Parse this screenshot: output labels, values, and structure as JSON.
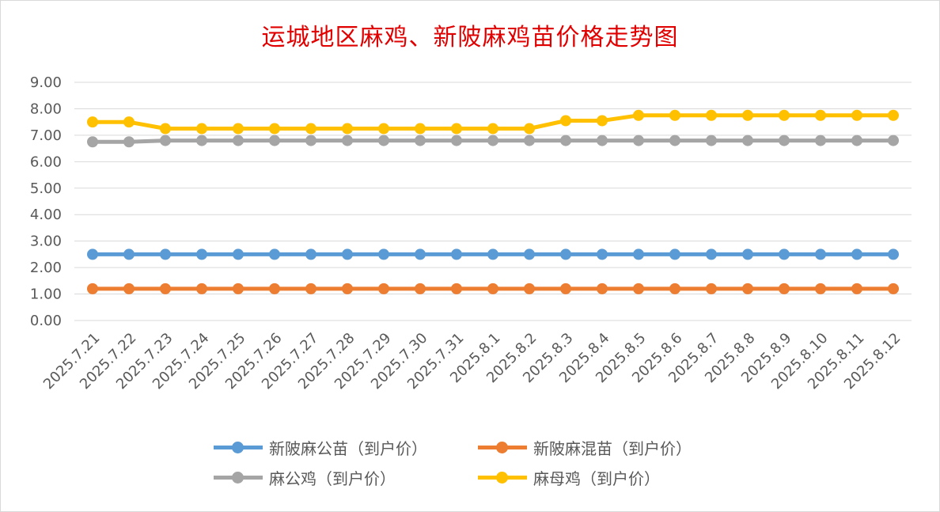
{
  "chart_data": {
    "type": "line",
    "title": "运城地区麻鸡、新陂麻鸡苗价格走势图",
    "xlabel": "",
    "ylabel": "",
    "ylim": [
      0,
      9
    ],
    "ytick_step": 1,
    "y_tick_labels": [
      "0.00",
      "1.00",
      "2.00",
      "3.00",
      "4.00",
      "5.00",
      "6.00",
      "7.00",
      "8.00",
      "9.00"
    ],
    "grid": true,
    "legend_position": "bottom",
    "categories": [
      "2025.7.21",
      "2025.7.22",
      "2025.7.23",
      "2025.7.24",
      "2025.7.25",
      "2025.7.26",
      "2025.7.27",
      "2025.7.28",
      "2025.7.29",
      "2025.7.30",
      "2025.7.31",
      "2025.8.1",
      "2025.8.2",
      "2025.8.3",
      "2025.8.4",
      "2025.8.5",
      "2025.8.6",
      "2025.8.7",
      "2025.8.8",
      "2025.8.9",
      "2025.8.10",
      "2025.8.11",
      "2025.8.12"
    ],
    "series": [
      {
        "name": "新陂麻公苗（到户价）",
        "color": "#5b9bd5",
        "values": [
          2.5,
          2.5,
          2.5,
          2.5,
          2.5,
          2.5,
          2.5,
          2.5,
          2.5,
          2.5,
          2.5,
          2.5,
          2.5,
          2.5,
          2.5,
          2.5,
          2.5,
          2.5,
          2.5,
          2.5,
          2.5,
          2.5,
          2.5
        ]
      },
      {
        "name": "新陂麻混苗（到户价）",
        "color": "#ed7d31",
        "values": [
          1.2,
          1.2,
          1.2,
          1.2,
          1.2,
          1.2,
          1.2,
          1.2,
          1.2,
          1.2,
          1.2,
          1.2,
          1.2,
          1.2,
          1.2,
          1.2,
          1.2,
          1.2,
          1.2,
          1.2,
          1.2,
          1.2,
          1.2
        ]
      },
      {
        "name": "麻公鸡（到户价）",
        "color": "#a5a5a5",
        "values": [
          6.75,
          6.75,
          6.8,
          6.8,
          6.8,
          6.8,
          6.8,
          6.8,
          6.8,
          6.8,
          6.8,
          6.8,
          6.8,
          6.8,
          6.8,
          6.8,
          6.8,
          6.8,
          6.8,
          6.8,
          6.8,
          6.8,
          6.8
        ]
      },
      {
        "name": "麻母鸡（到户价）",
        "color": "#ffc000",
        "values": [
          7.5,
          7.5,
          7.25,
          7.25,
          7.25,
          7.25,
          7.25,
          7.25,
          7.25,
          7.25,
          7.25,
          7.25,
          7.25,
          7.55,
          7.55,
          7.75,
          7.75,
          7.75,
          7.75,
          7.75,
          7.75,
          7.75,
          7.75
        ]
      }
    ]
  }
}
